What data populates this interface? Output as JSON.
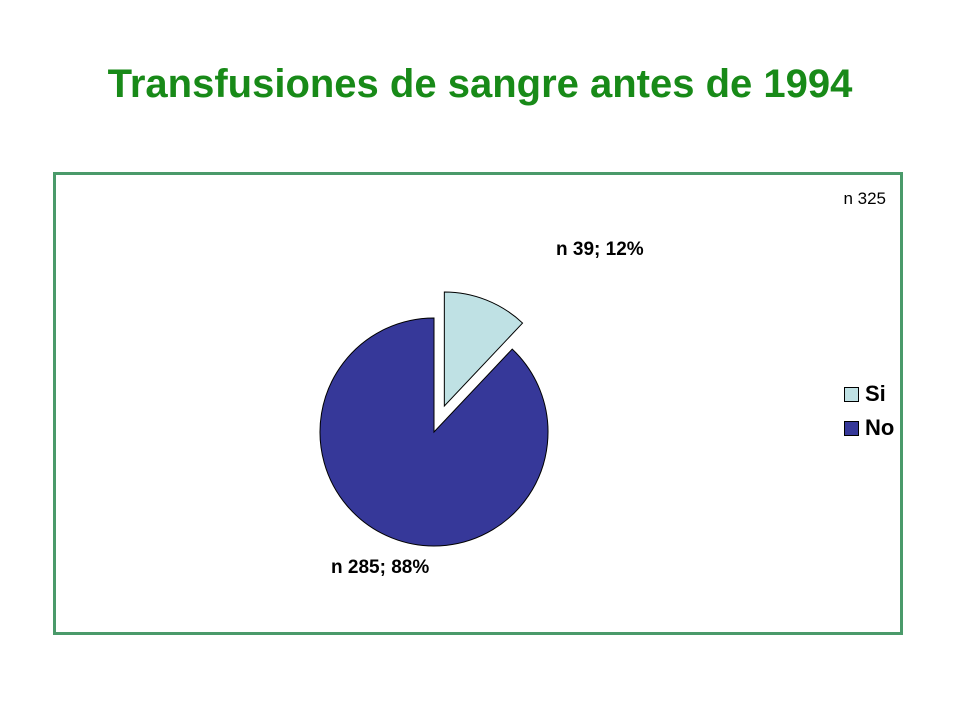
{
  "title": "Transfusiones de sangre antes de 1994",
  "total_note": "n 325",
  "chart_data": {
    "type": "pie",
    "title": "Transfusiones de sangre antes de 1994",
    "total": 325,
    "slices": [
      {
        "name": "Si",
        "value": 39,
        "percent": 12,
        "label": "n 39; 12%",
        "color": "#bfe1e4",
        "exploded": true
      },
      {
        "name": "No",
        "value": 285,
        "percent": 88,
        "label": "n 285; 88%",
        "color": "#363899",
        "exploded": false
      }
    ],
    "legend_position": "right"
  },
  "legend": {
    "items": [
      {
        "label": "Si",
        "color": "#bfe1e4"
      },
      {
        "label": "No",
        "color": "#363899"
      }
    ]
  },
  "colors": {
    "title": "#188a18",
    "frame": "#4a9a6a"
  }
}
